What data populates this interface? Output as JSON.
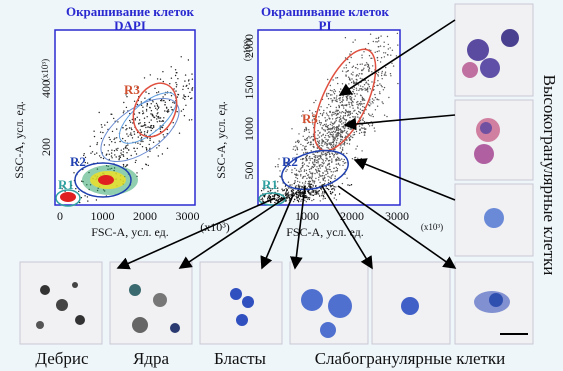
{
  "panels": [
    {
      "title": "Окрашивание клеток",
      "stain": "DAPI",
      "x_label": "FSC-A, усл. ед.",
      "y_label": "SSC-A, усл. ед.",
      "xticks": [
        "0",
        "1000",
        "2000",
        "3000"
      ],
      "yticks": [
        "200",
        "400"
      ],
      "x_unit": "(x10³)",
      "y_unit": "(x10³)",
      "regions": [
        "R1",
        "R2",
        "R3"
      ]
    },
    {
      "title": "Окрашивание клеток",
      "stain": "PI",
      "x_label": "FSC-A, усл. ед.",
      "y_label": "SSC-A, усл. ед.",
      "xticks": [
        "1000",
        "2000",
        "3000"
      ],
      "yticks": [
        "500",
        "1000",
        "1500",
        "2000"
      ],
      "x_unit": "(x10³)",
      "y_unit": "(x10³)",
      "regions": [
        "R1",
        "R2",
        "R3"
      ]
    }
  ],
  "cell_types": [
    "Дебрис",
    "Ядра",
    "Бласты",
    "Слабогранулярные клетки",
    "Высокогранулярные клетки"
  ]
}
